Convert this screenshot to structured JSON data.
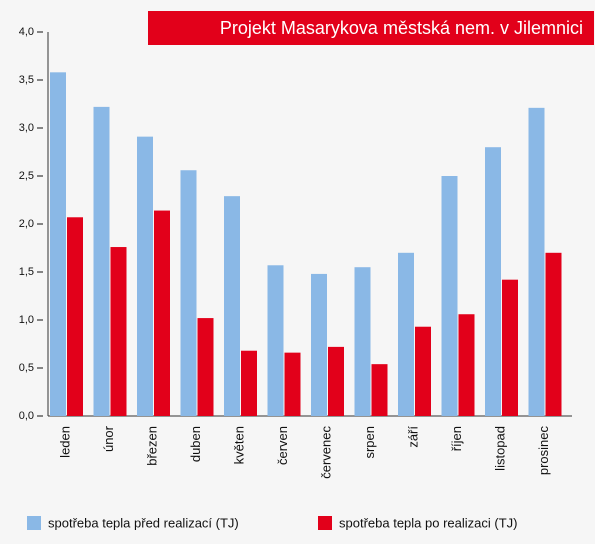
{
  "chart_data": {
    "type": "bar",
    "title": "Projekt Masarykova městská nem. v Jilemnici",
    "categories": [
      "leden",
      "únor",
      "březen",
      "duben",
      "květen",
      "červen",
      "červenec",
      "srpen",
      "září",
      "říjen",
      "listopad",
      "prosinec"
    ],
    "series": [
      {
        "name": "spotřeba tepla před realizací (TJ)",
        "color": "#8ab8e6",
        "values": [
          3.58,
          3.22,
          2.91,
          2.56,
          2.29,
          1.57,
          1.48,
          1.55,
          1.7,
          2.5,
          2.8,
          3.21
        ]
      },
      {
        "name": "spotřeba tepla po realizaci (TJ)",
        "color": "#e2001a",
        "values": [
          2.07,
          1.76,
          2.14,
          1.02,
          0.68,
          0.66,
          0.72,
          0.54,
          0.93,
          1.06,
          1.42,
          1.7
        ]
      }
    ],
    "ylim": [
      0,
      4
    ],
    "yticks": [
      {
        "value": 0,
        "label": "0,0"
      },
      {
        "value": 0.5,
        "label": "0,5"
      },
      {
        "value": 1,
        "label": "1,0"
      },
      {
        "value": 1.5,
        "label": "1,5"
      },
      {
        "value": 2,
        "label": "2,0"
      },
      {
        "value": 2.5,
        "label": "2,5"
      },
      {
        "value": 3,
        "label": "3,0"
      },
      {
        "value": 3.5,
        "label": "3,5"
      },
      {
        "value": 4,
        "label": "4,0"
      }
    ]
  }
}
